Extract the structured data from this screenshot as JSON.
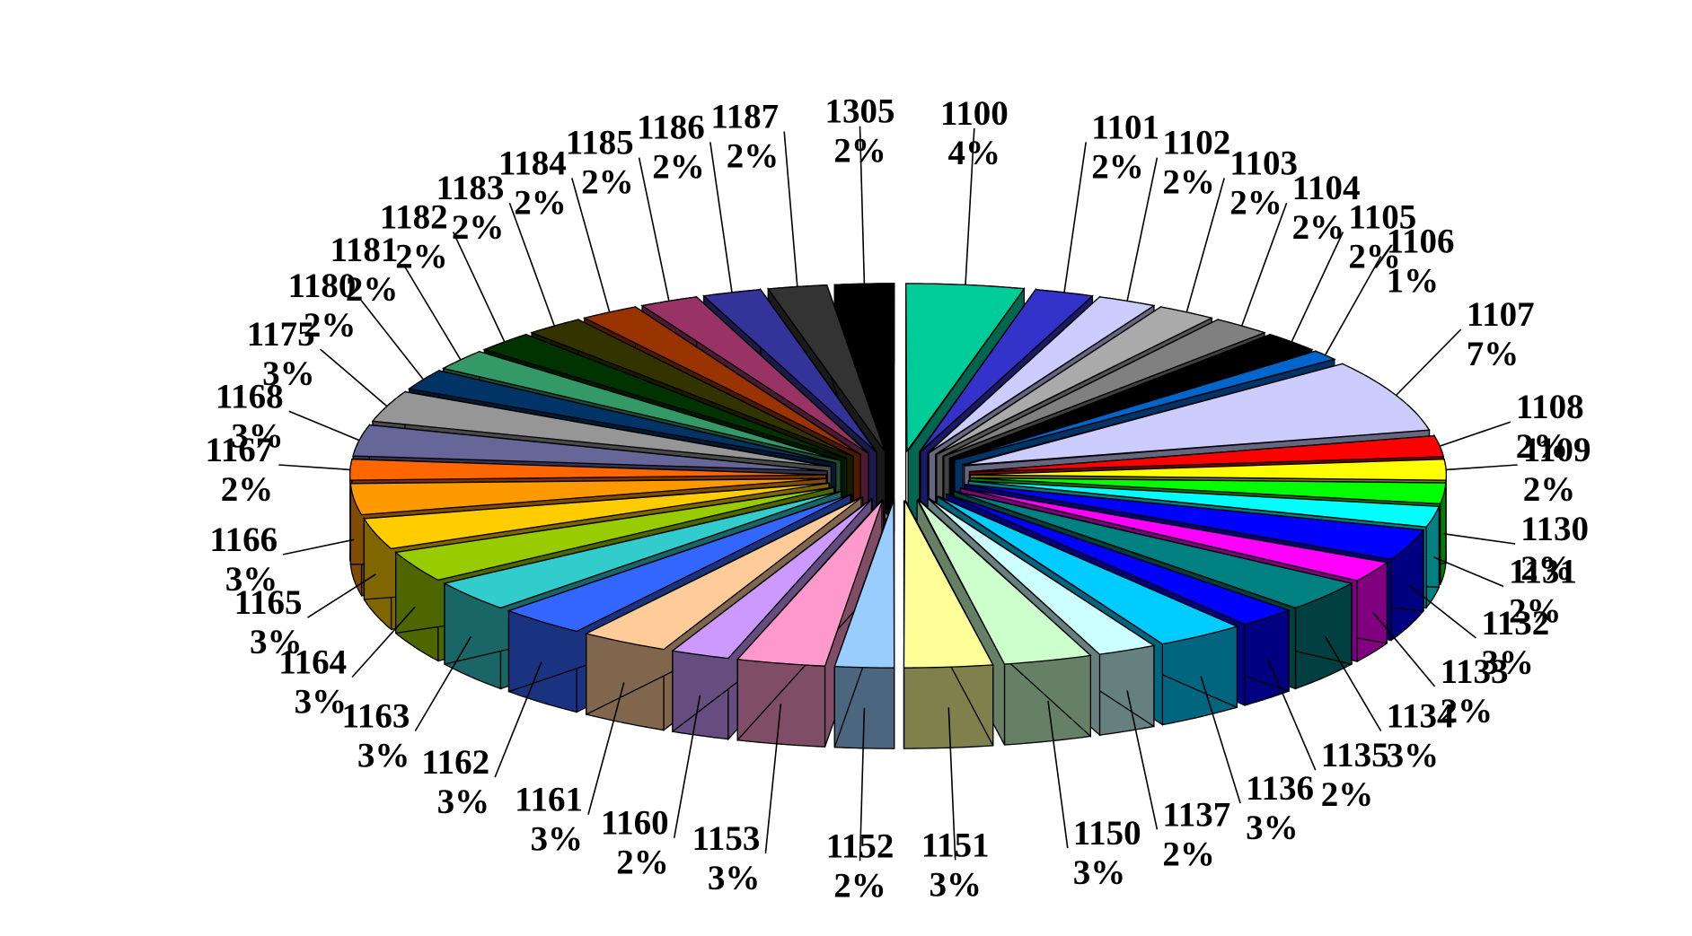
{
  "chart_data": {
    "type": "pie",
    "style": "3d-exploded",
    "title": "",
    "legend": "none",
    "slices": [
      {
        "label": "1100",
        "value": 4,
        "pct": "4%",
        "color": "#00cc99",
        "side": "#006650"
      },
      {
        "label": "1101",
        "value": 2,
        "pct": "2%",
        "color": "#3333cc",
        "side": "#1a1a66"
      },
      {
        "label": "1102",
        "value": 2,
        "pct": "2%",
        "color": "#ccccff",
        "side": "#666680"
      },
      {
        "label": "1103",
        "value": 2,
        "pct": "2%",
        "color": "#aaaaaa",
        "side": "#555555"
      },
      {
        "label": "1104",
        "value": 2,
        "pct": "2%",
        "color": "#808080",
        "side": "#404040"
      },
      {
        "label": "1105",
        "value": 2,
        "pct": "2%",
        "color": "#000000",
        "side": "#000000"
      },
      {
        "label": "1106",
        "value": 1,
        "pct": "1%",
        "color": "#0066cc",
        "side": "#003366"
      },
      {
        "label": "1107",
        "value": 7,
        "pct": "7%",
        "color": "#ccccff",
        "side": "#666680"
      },
      {
        "label": "1108",
        "value": 2,
        "pct": "2%",
        "color": "#ff0000",
        "side": "#800000"
      },
      {
        "label": "1109",
        "value": 2,
        "pct": "2%",
        "color": "#ffff00",
        "side": "#808000"
      },
      {
        "label": "1130",
        "value": 2,
        "pct": "2%",
        "color": "#00ff00",
        "side": "#008000"
      },
      {
        "label": "1131",
        "value": 2,
        "pct": "2%",
        "color": "#00ffff",
        "side": "#008080"
      },
      {
        "label": "1132",
        "value": 3,
        "pct": "3%",
        "color": "#0000ff",
        "side": "#000080"
      },
      {
        "label": "1133",
        "value": 2,
        "pct": "2%",
        "color": "#ff00ff",
        "side": "#800080"
      },
      {
        "label": "1134",
        "value": 3,
        "pct": "3%",
        "color": "#008080",
        "side": "#004040"
      },
      {
        "label": "1135",
        "value": 2,
        "pct": "2%",
        "color": "#0000ff",
        "side": "#000080"
      },
      {
        "label": "1136",
        "value": 3,
        "pct": "3%",
        "color": "#00ccff",
        "side": "#006680"
      },
      {
        "label": "1137",
        "value": 2,
        "pct": "2%",
        "color": "#ccffff",
        "side": "#668080"
      },
      {
        "label": "1150",
        "value": 3,
        "pct": "3%",
        "color": "#ccffcc",
        "side": "#668066"
      },
      {
        "label": "1151",
        "value": 3,
        "pct": "3%",
        "color": "#ffff99",
        "side": "#80804d"
      },
      {
        "label": "1152",
        "value": 2,
        "pct": "2%",
        "color": "#99ccff",
        "side": "#4d6680"
      },
      {
        "label": "1153",
        "value": 3,
        "pct": "3%",
        "color": "#ff99cc",
        "side": "#804d66"
      },
      {
        "label": "1160",
        "value": 2,
        "pct": "2%",
        "color": "#cc99ff",
        "side": "#664d80"
      },
      {
        "label": "1161",
        "value": 3,
        "pct": "3%",
        "color": "#ffcc99",
        "side": "#80664d"
      },
      {
        "label": "1162",
        "value": 3,
        "pct": "3%",
        "color": "#3366ff",
        "side": "#1a3380"
      },
      {
        "label": "1163",
        "value": 3,
        "pct": "3%",
        "color": "#33cccc",
        "side": "#1a6666"
      },
      {
        "label": "1164",
        "value": 3,
        "pct": "3%",
        "color": "#99cc00",
        "side": "#4d6600"
      },
      {
        "label": "1165",
        "value": 3,
        "pct": "3%",
        "color": "#ffcc00",
        "side": "#806600"
      },
      {
        "label": "1166",
        "value": 3,
        "pct": "3%",
        "color": "#ff9900",
        "side": "#804d00"
      },
      {
        "label": "1167",
        "value": 2,
        "pct": "2%",
        "color": "#ff6600",
        "side": "#803300"
      },
      {
        "label": "1168",
        "value": 3,
        "pct": "3%",
        "color": "#666699",
        "side": "#33334d"
      },
      {
        "label": "1175",
        "value": 3,
        "pct": "3%",
        "color": "#969696",
        "side": "#4b4b4b"
      },
      {
        "label": "1180",
        "value": 2,
        "pct": "2%",
        "color": "#003366",
        "side": "#001a33"
      },
      {
        "label": "1181",
        "value": 2,
        "pct": "2%",
        "color": "#339966",
        "side": "#1a4d33"
      },
      {
        "label": "1182",
        "value": 2,
        "pct": "2%",
        "color": "#003300",
        "side": "#001a00"
      },
      {
        "label": "1183",
        "value": 2,
        "pct": "2%",
        "color": "#333300",
        "side": "#1a1a00"
      },
      {
        "label": "1184",
        "value": 2,
        "pct": "2%",
        "color": "#993300",
        "side": "#4d1a00"
      },
      {
        "label": "1185",
        "value": 2,
        "pct": "2%",
        "color": "#993366",
        "side": "#4d1a33"
      },
      {
        "label": "1186",
        "value": 2,
        "pct": "2%",
        "color": "#333399",
        "side": "#1a1a4d"
      },
      {
        "label": "1187",
        "value": 2,
        "pct": "2%",
        "color": "#333333",
        "side": "#1a1a1a"
      },
      {
        "label": "1305",
        "value": 2,
        "pct": "2%",
        "color": "#000000",
        "side": "#000000"
      }
    ]
  }
}
